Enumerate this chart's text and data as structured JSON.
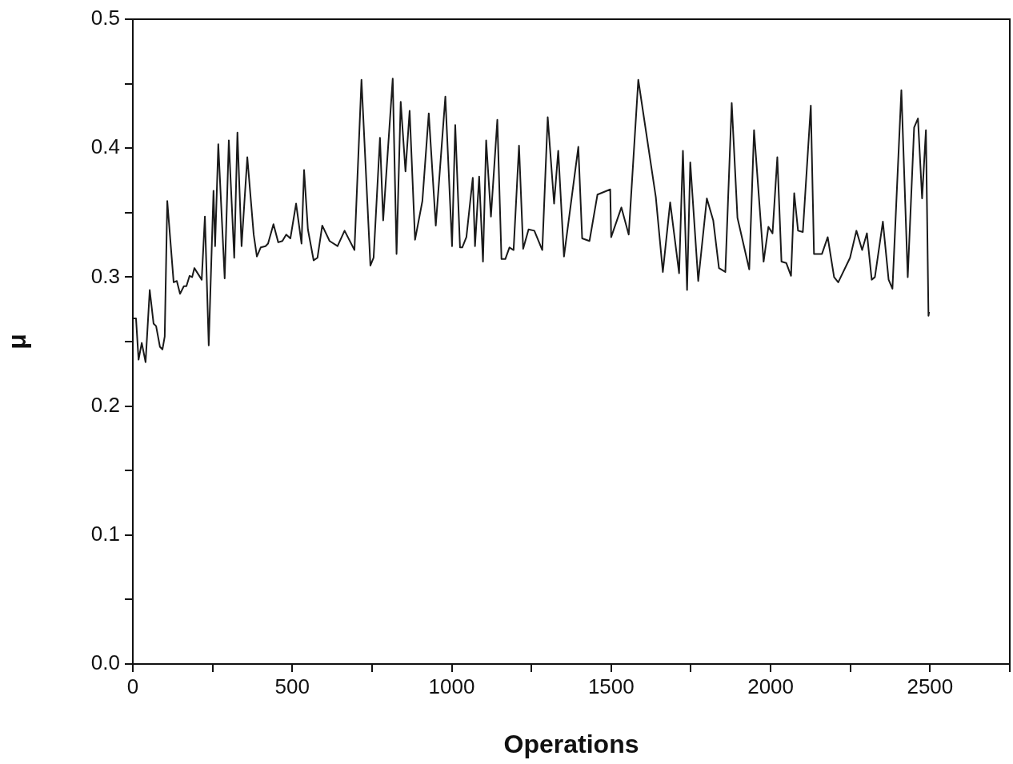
{
  "chart_data": {
    "type": "line",
    "xlabel": "Operations",
    "ylabel": "μ",
    "xlim": [
      0,
      2750
    ],
    "xticks": [
      0,
      {
        "value": 250,
        "label": null
      },
      500,
      {
        "value": 750,
        "label": null
      },
      1000,
      {
        "value": 1250,
        "label": null
      },
      1500,
      {
        "value": 1750,
        "label": null
      },
      2000,
      {
        "value": 2250,
        "label": null
      },
      2500,
      {
        "value": 2750,
        "label": null
      }
    ],
    "ylim": [
      0,
      0.5
    ],
    "yticks": [
      {
        "value": 0,
        "label": "0.0"
      },
      {
        "value": 0.05,
        "label": null
      },
      0.1,
      {
        "value": 0.15,
        "label": null
      },
      0.2,
      {
        "value": 0.25,
        "label": null
      },
      0.3,
      {
        "value": 0.35,
        "label": null
      },
      0.4,
      {
        "value": 0.45,
        "label": null
      },
      0.5
    ],
    "x": [
      0,
      10,
      18,
      28,
      40,
      53,
      65,
      73,
      85,
      93,
      100,
      108,
      128,
      138,
      148,
      160,
      168,
      178,
      186,
      193,
      216,
      226,
      238,
      253,
      258,
      268,
      288,
      301,
      318,
      328,
      341,
      359,
      379,
      389,
      401,
      416,
      424,
      441,
      456,
      469,
      481,
      494,
      512,
      529,
      537,
      549,
      567,
      579,
      594,
      617,
      642,
      664,
      695,
      717,
      745,
      755,
      775,
      785,
      815,
      827,
      840,
      855,
      868,
      885,
      908,
      928,
      950,
      980,
      1001,
      1011,
      1026,
      1033,
      1046,
      1066,
      1073,
      1086,
      1098,
      1108,
      1123,
      1143,
      1156,
      1168,
      1181,
      1194,
      1211,
      1224,
      1241,
      1259,
      1284,
      1301,
      1321,
      1334,
      1352,
      1397,
      1409,
      1432,
      1457,
      1497,
      1500,
      1532,
      1555,
      1585,
      1640,
      1662,
      1685,
      1713,
      1725,
      1738,
      1748,
      1773,
      1800,
      1820,
      1838,
      1858,
      1878,
      1896,
      1933,
      1948,
      1978,
      1993,
      2006,
      2021,
      2034,
      2049,
      2064,
      2074,
      2086,
      2101,
      2126,
      2136,
      2161,
      2179,
      2199,
      2212,
      2249,
      2269,
      2287,
      2302,
      2317,
      2327,
      2352,
      2370,
      2382,
      2410,
      2430,
      2450,
      2462,
      2475,
      2487,
      2495,
      2497
    ],
    "series": [
      {
        "color": "#1a1a1a",
        "values": [
          0.268,
          0.268,
          0.236,
          0.249,
          0.234,
          0.29,
          0.264,
          0.262,
          0.246,
          0.244,
          0.254,
          0.359,
          0.296,
          0.297,
          0.287,
          0.293,
          0.293,
          0.301,
          0.3,
          0.307,
          0.298,
          0.347,
          0.247,
          0.367,
          0.324,
          0.403,
          0.299,
          0.406,
          0.315,
          0.412,
          0.324,
          0.393,
          0.333,
          0.316,
          0.323,
          0.324,
          0.326,
          0.341,
          0.327,
          0.328,
          0.333,
          0.33,
          0.357,
          0.326,
          0.383,
          0.337,
          0.313,
          0.315,
          0.34,
          0.328,
          0.324,
          0.336,
          0.321,
          0.453,
          0.309,
          0.315,
          0.408,
          0.344,
          0.454,
          0.318,
          0.436,
          0.382,
          0.429,
          0.329,
          0.359,
          0.427,
          0.34,
          0.44,
          0.324,
          0.418,
          0.323,
          0.323,
          0.331,
          0.377,
          0.324,
          0.378,
          0.312,
          0.406,
          0.347,
          0.422,
          0.314,
          0.314,
          0.323,
          0.321,
          0.402,
          0.322,
          0.337,
          0.336,
          0.321,
          0.424,
          0.357,
          0.398,
          0.316,
          0.401,
          0.33,
          0.328,
          0.364,
          0.368,
          0.331,
          0.354,
          0.333,
          0.453,
          0.362,
          0.304,
          0.358,
          0.303,
          0.398,
          0.29,
          0.389,
          0.297,
          0.361,
          0.344,
          0.307,
          0.304,
          0.435,
          0.346,
          0.306,
          0.414,
          0.312,
          0.339,
          0.334,
          0.393,
          0.312,
          0.311,
          0.301,
          0.365,
          0.336,
          0.335,
          0.433,
          0.318,
          0.318,
          0.331,
          0.3,
          0.296,
          0.315,
          0.336,
          0.321,
          0.334,
          0.298,
          0.3,
          0.343,
          0.298,
          0.291,
          0.445,
          0.3,
          0.416,
          0.423,
          0.361,
          0.414,
          0.27,
          0.273
        ]
      }
    ]
  }
}
